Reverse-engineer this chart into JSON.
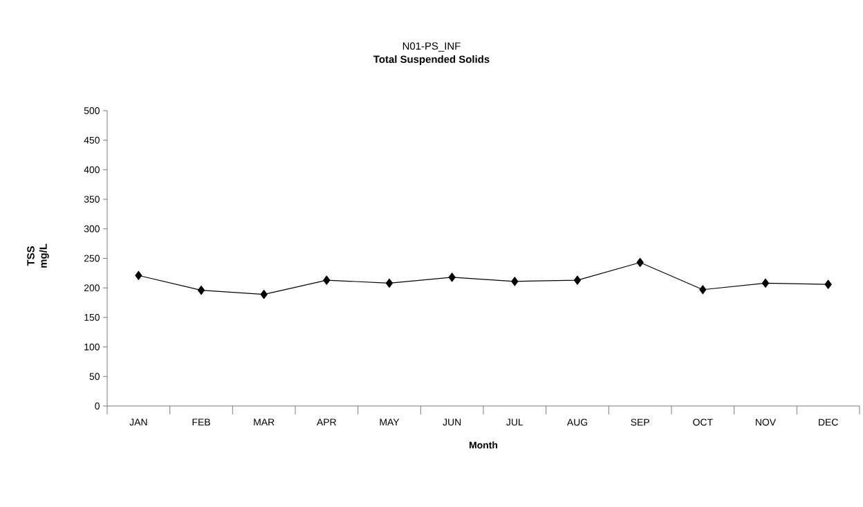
{
  "chart_data": {
    "type": "line",
    "title": "N01-PS_INF",
    "subtitle": "Total Suspended Solids",
    "xlabel": "Month",
    "ylabel": "TSS mg/L",
    "categories": [
      "JAN",
      "FEB",
      "MAR",
      "APR",
      "MAY",
      "JUN",
      "JUL",
      "AUG",
      "SEP",
      "OCT",
      "NOV",
      "DEC"
    ],
    "series": [
      {
        "color": "#000000",
        "values": [
          221,
          196,
          189,
          213,
          208,
          218,
          211,
          213,
          243,
          197,
          208,
          206
        ]
      }
    ],
    "ylim": [
      0,
      500
    ],
    "yticks": [
      0,
      50,
      100,
      150,
      200,
      250,
      300,
      350,
      400,
      450,
      500
    ],
    "grid": false,
    "legend": false,
    "marker": "diamond",
    "line_style": "solid"
  }
}
